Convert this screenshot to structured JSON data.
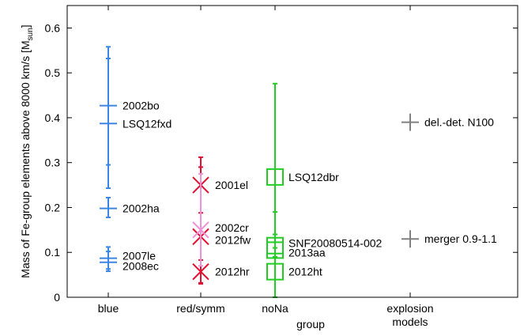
{
  "chart_data": {
    "type": "scatter",
    "title": "",
    "xlabel": "group",
    "ylabel": "Mass of Fe-group elements above 8000 km/s [M",
    "ylabel_sub": "sun",
    "ylabel_close": "]",
    "ylim": [
      0,
      0.65
    ],
    "yticks": [
      "0",
      "0.1",
      "0.2",
      "0.3",
      "0.4",
      "0.5",
      "0.6"
    ],
    "grid": false,
    "categories": [
      {
        "key": "blue",
        "lines": [
          "blue"
        ]
      },
      {
        "key": "red/symm",
        "lines": [
          "red/symm"
        ]
      },
      {
        "key": "noNa",
        "lines": [
          "noNa"
        ]
      },
      {
        "key": "explosion models",
        "lines": [
          "explosion",
          "models"
        ]
      }
    ],
    "series": [
      {
        "group": "blue",
        "marker": "plus",
        "color": "#3a86e0",
        "points": [
          {
            "label": "2002bo",
            "y": 0.427,
            "ylo": 0.295,
            "yhi": 0.558
          },
          {
            "label": "LSQ12fxd",
            "y": 0.387,
            "ylo": 0.243,
            "yhi": 0.532
          },
          {
            "label": "2002ha",
            "y": 0.198,
            "ylo": 0.178,
            "yhi": 0.222
          },
          {
            "label": "2007le",
            "y": 0.087,
            "ylo": 0.063,
            "yhi": 0.112
          },
          {
            "label": "2008ec",
            "y": 0.078,
            "ylo": 0.058,
            "yhi": 0.102
          }
        ]
      },
      {
        "group": "red/symm",
        "marker": "x",
        "color": "#e01030",
        "points": [
          {
            "label": "2001el",
            "y": 0.25,
            "ylo": 0.188,
            "yhi": 0.312
          },
          {
            "label": "2012fw",
            "y": 0.135,
            "ylo": 0.03,
            "yhi": 0.29
          },
          {
            "label": "2012hr",
            "y": 0.057,
            "ylo": 0.032,
            "yhi": 0.083
          }
        ]
      },
      {
        "group": "red/symm",
        "marker": "x",
        "color": "#f090d8",
        "points": [
          {
            "label": "2002cr",
            "y": 0.15,
            "ylo": 0.07,
            "yhi": 0.275
          }
        ]
      },
      {
        "group": "noNa",
        "marker": "square",
        "color": "#22cc22",
        "points": [
          {
            "label": "LSQ12dbr",
            "y": 0.268,
            "ylo": 0.14,
            "yhi": 0.476
          },
          {
            "label": "SNF20080514-002",
            "y": 0.115,
            "ylo": 0.09,
            "yhi": 0.14
          },
          {
            "label": "2013aa",
            "y": 0.105,
            "ylo": 0.0,
            "yhi": 0.19
          },
          {
            "label": "2012ht",
            "y": 0.057,
            "ylo": 0.0,
            "yhi": 0.11
          }
        ]
      },
      {
        "group": "explosion models",
        "marker": "plus",
        "color": "#808080",
        "points": [
          {
            "label": "del.-det. N100",
            "y": 0.39
          },
          {
            "label": "merger 0.9-1.1",
            "y": 0.13
          }
        ]
      }
    ]
  }
}
